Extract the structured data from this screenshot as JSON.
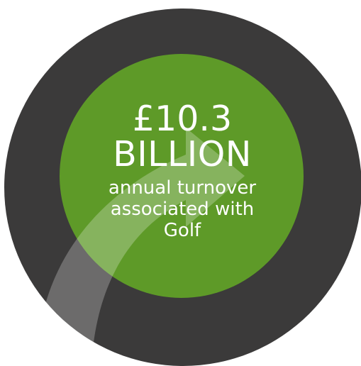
{
  "stat": {
    "amount": "£10.3",
    "unit": "BILLION",
    "caption_line1": "annual turnover",
    "caption_line2": "associated with",
    "caption_line3": "Golf"
  },
  "colors": {
    "outer_ring": "#3b3a3a",
    "inner_circle": "#5e9a28",
    "arrow_highlight": "#ffffff",
    "text": "#ffffff"
  },
  "icons": {
    "arrow": "curved-arrow-icon"
  }
}
